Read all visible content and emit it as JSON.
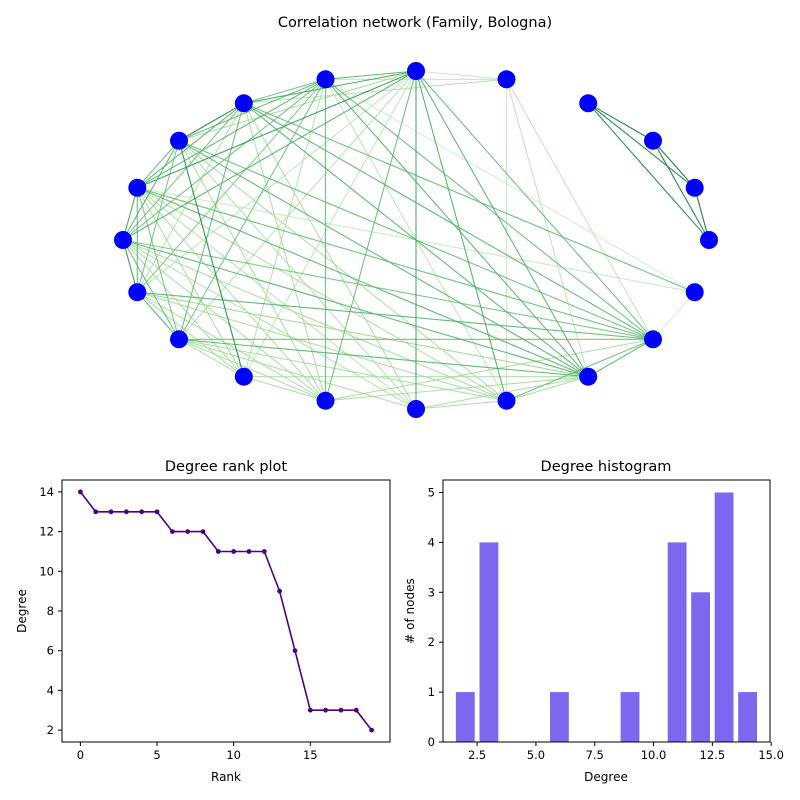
{
  "figure": {
    "network_title": "Correlation network (Family, Bologna)"
  },
  "chart_data": [
    {
      "type": "network",
      "title": "Correlation network (Family, Bologna)",
      "node_color": "#0000ff",
      "edge_colormap": [
        "#e5f5e0",
        "#a1d99b",
        "#41ab5d",
        "#006d2c"
      ],
      "nodes": [
        {
          "id": 0,
          "angle_deg": 90
        },
        {
          "id": 1,
          "angle_deg": 108
        },
        {
          "id": 2,
          "angle_deg": 126
        },
        {
          "id": 3,
          "angle_deg": 144
        },
        {
          "id": 4,
          "angle_deg": 162
        },
        {
          "id": 5,
          "angle_deg": 180
        },
        {
          "id": 6,
          "angle_deg": 198
        },
        {
          "id": 7,
          "angle_deg": 216
        },
        {
          "id": 8,
          "angle_deg": 234
        },
        {
          "id": 9,
          "angle_deg": 252
        },
        {
          "id": 10,
          "angle_deg": 270
        },
        {
          "id": 11,
          "angle_deg": 288
        },
        {
          "id": 12,
          "angle_deg": 306
        },
        {
          "id": 13,
          "angle_deg": 324
        },
        {
          "id": 14,
          "angle_deg": 342
        },
        {
          "id": 15,
          "angle_deg": 0
        },
        {
          "id": 16,
          "angle_deg": 18
        },
        {
          "id": 17,
          "angle_deg": 36
        },
        {
          "id": 18,
          "angle_deg": 54
        },
        {
          "id": 19,
          "angle_deg": 72
        }
      ],
      "edges": [
        [
          18,
          17,
          0.95
        ],
        [
          18,
          16,
          0.9
        ],
        [
          18,
          15,
          0.85
        ],
        [
          17,
          16,
          0.95
        ],
        [
          17,
          15,
          0.9
        ],
        [
          16,
          15,
          0.95
        ],
        [
          0,
          1,
          0.6
        ],
        [
          0,
          2,
          0.7
        ],
        [
          0,
          4,
          0.75
        ],
        [
          0,
          5,
          0.6
        ],
        [
          0,
          9,
          0.55
        ],
        [
          0,
          10,
          0.7
        ],
        [
          0,
          11,
          0.65
        ],
        [
          0,
          12,
          0.6
        ],
        [
          0,
          13,
          0.55
        ],
        [
          0,
          3,
          0.3
        ],
        [
          0,
          6,
          0.2
        ],
        [
          0,
          7,
          0.25
        ],
        [
          0,
          19,
          0.15
        ],
        [
          0,
          8,
          0.2
        ],
        [
          1,
          2,
          0.5
        ],
        [
          1,
          3,
          0.55
        ],
        [
          1,
          4,
          0.6
        ],
        [
          1,
          5,
          0.5
        ],
        [
          1,
          6,
          0.45
        ],
        [
          1,
          7,
          0.5
        ],
        [
          1,
          9,
          0.55
        ],
        [
          1,
          12,
          0.6
        ],
        [
          1,
          13,
          0.55
        ],
        [
          1,
          19,
          0.2
        ],
        [
          1,
          8,
          0.25
        ],
        [
          1,
          11,
          0.2
        ],
        [
          2,
          3,
          0.9
        ],
        [
          2,
          4,
          0.6
        ],
        [
          2,
          5,
          0.5
        ],
        [
          2,
          7,
          0.55
        ],
        [
          2,
          12,
          0.6
        ],
        [
          2,
          13,
          0.6
        ],
        [
          2,
          14,
          0.55
        ],
        [
          2,
          9,
          0.3
        ],
        [
          2,
          10,
          0.3
        ],
        [
          2,
          19,
          0.25
        ],
        [
          2,
          6,
          0.25
        ],
        [
          3,
          4,
          0.55
        ],
        [
          3,
          5,
          0.6
        ],
        [
          3,
          6,
          0.5
        ],
        [
          3,
          8,
          0.85
        ],
        [
          3,
          12,
          0.6
        ],
        [
          3,
          13,
          0.55
        ],
        [
          3,
          11,
          0.3
        ],
        [
          3,
          9,
          0.3
        ],
        [
          3,
          10,
          0.25
        ],
        [
          4,
          5,
          0.7
        ],
        [
          4,
          6,
          0.6
        ],
        [
          4,
          7,
          0.5
        ],
        [
          4,
          12,
          0.6
        ],
        [
          4,
          13,
          0.55
        ],
        [
          4,
          11,
          0.3
        ],
        [
          4,
          8,
          0.3
        ],
        [
          4,
          9,
          0.3
        ],
        [
          4,
          10,
          0.25
        ],
        [
          4,
          14,
          0.15
        ],
        [
          5,
          6,
          0.8
        ],
        [
          5,
          7,
          0.55
        ],
        [
          5,
          12,
          0.6
        ],
        [
          5,
          13,
          0.5
        ],
        [
          5,
          11,
          0.3
        ],
        [
          5,
          8,
          0.3
        ],
        [
          5,
          9,
          0.3
        ],
        [
          5,
          10,
          0.25
        ],
        [
          6,
          7,
          0.6
        ],
        [
          6,
          13,
          0.6
        ],
        [
          6,
          12,
          0.35
        ],
        [
          6,
          11,
          0.3
        ],
        [
          6,
          8,
          0.3
        ],
        [
          6,
          9,
          0.3
        ],
        [
          7,
          12,
          0.6
        ],
        [
          7,
          13,
          0.55
        ],
        [
          7,
          9,
          0.3
        ],
        [
          7,
          10,
          0.3
        ],
        [
          7,
          11,
          0.3
        ],
        [
          7,
          8,
          0.3
        ],
        [
          12,
          13,
          0.6
        ],
        [
          11,
          13,
          0.55
        ],
        [
          11,
          12,
          0.3
        ],
        [
          9,
          12,
          0.3
        ],
        [
          9,
          13,
          0.3
        ],
        [
          10,
          12,
          0.3
        ],
        [
          10,
          11,
          0.3
        ],
        [
          8,
          9,
          0.3
        ],
        [
          8,
          12,
          0.3
        ],
        [
          19,
          12,
          0.2
        ],
        [
          19,
          11,
          0.15
        ],
        [
          19,
          13,
          0.2
        ],
        [
          14,
          13,
          0.1
        ],
        [
          1,
          14,
          0.1
        ]
      ]
    },
    {
      "type": "line",
      "title": "Degree rank plot",
      "xlabel": "Rank",
      "ylabel": "Degree",
      "color": "#4b0082",
      "x": [
        0,
        1,
        2,
        3,
        4,
        5,
        6,
        7,
        8,
        9,
        10,
        11,
        12,
        13,
        14,
        15,
        16,
        17,
        18,
        19
      ],
      "y": [
        14,
        13,
        13,
        13,
        13,
        13,
        12,
        12,
        12,
        11,
        11,
        11,
        11,
        9,
        6,
        3,
        3,
        3,
        3,
        2
      ],
      "xlim": [
        -1.2,
        20.2
      ],
      "ylim": [
        1.4,
        14.6
      ],
      "xticks": [
        0,
        5,
        10,
        15
      ],
      "xtick_labels": [
        "0",
        "5",
        "10",
        "15"
      ],
      "yticks": [
        2,
        4,
        6,
        8,
        10,
        12,
        14
      ],
      "ytick_labels": [
        "2",
        "4",
        "6",
        "8",
        "10",
        "12",
        "14"
      ]
    },
    {
      "type": "bar",
      "title": "Degree histogram",
      "xlabel": "Degree",
      "ylabel": "# of nodes",
      "color": "#7b68ee",
      "categories": [
        2,
        3,
        6,
        9,
        11,
        12,
        13,
        14
      ],
      "values": [
        1,
        4,
        1,
        1,
        4,
        3,
        5,
        1
      ],
      "bar_width": 0.8,
      "xlim": [
        1.05,
        14.95
      ],
      "ylim": [
        0,
        5.25
      ],
      "xticks": [
        2.5,
        5.0,
        7.5,
        10.0,
        12.5,
        15.0
      ],
      "xtick_labels": [
        "2.5",
        "5.0",
        "7.5",
        "10.0",
        "12.5",
        "15.0"
      ],
      "yticks": [
        0,
        1,
        2,
        3,
        4,
        5
      ],
      "ytick_labels": [
        "0",
        "1",
        "2",
        "3",
        "4",
        "5"
      ]
    }
  ]
}
